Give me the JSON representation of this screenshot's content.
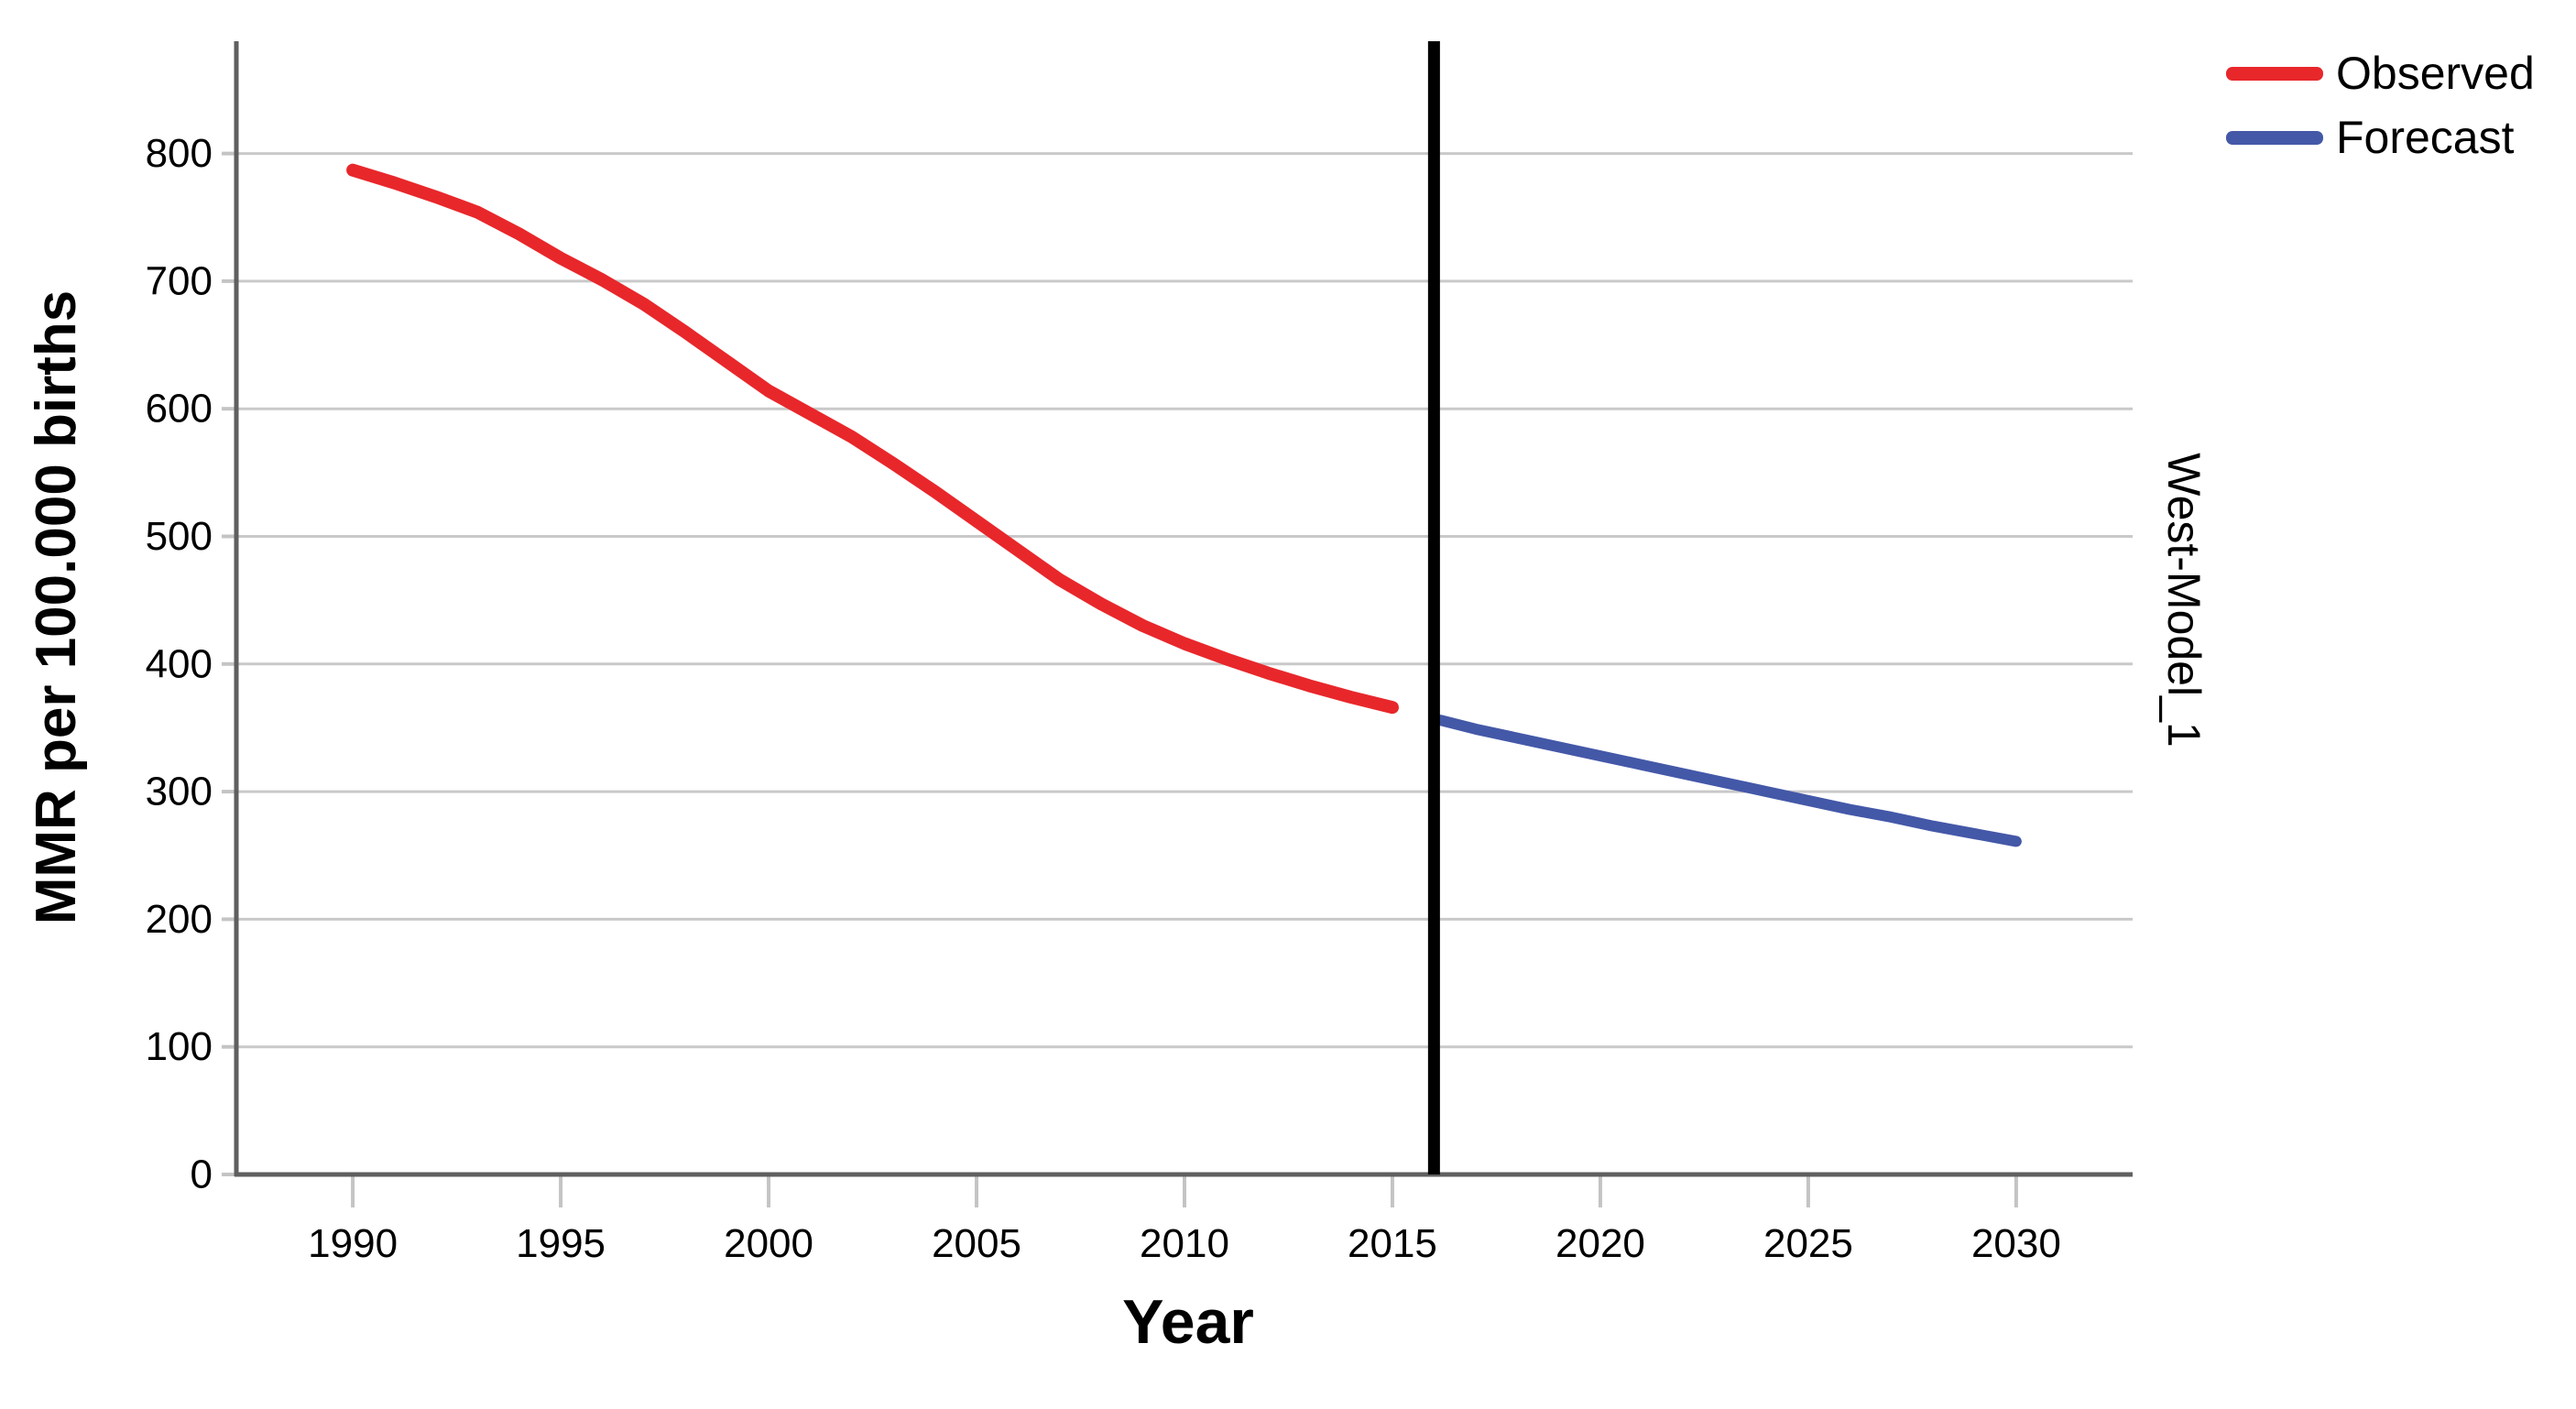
{
  "figure": {
    "y_axis_title": "MMR per 100.000 births",
    "x_axis_title": "Year",
    "right_label": "West-Model_1"
  },
  "legend": {
    "position": "top-right",
    "items": [
      {
        "label": "Observed",
        "color": "#E8272B"
      },
      {
        "label": "Forecast",
        "color": "#4458A8"
      }
    ]
  },
  "colors": {
    "background": "#FFFFFF",
    "gridline": "#C9C9C9",
    "axis_line": "#5F5F5F",
    "tick_mark": "#C4C4C4",
    "tick_label": "#000000",
    "separator_line": "#000000"
  },
  "chart_data": {
    "type": "line",
    "title": "",
    "xlabel": "Year",
    "ylabel": "MMR per 100.000 births",
    "xlim": [
      1987.2,
      2032.8
    ],
    "ylim": [
      0,
      888
    ],
    "x_ticks": [
      1990,
      1995,
      2000,
      2005,
      2010,
      2015,
      2020,
      2025,
      2030
    ],
    "y_ticks": [
      0,
      100,
      200,
      300,
      400,
      500,
      600,
      700,
      800
    ],
    "grid": "horizontal-only",
    "legend_position": "top-right",
    "right_side_label": "West-Model_1",
    "annotations": [
      {
        "type": "vline",
        "x": 2016,
        "color": "#000000",
        "note": "forecast start separator"
      }
    ],
    "series": [
      {
        "name": "Observed",
        "color": "#E8272B",
        "stroke_width": 14,
        "x": [
          1990,
          1991,
          1992,
          1993,
          1994,
          1995,
          1996,
          1997,
          1998,
          1999,
          2000,
          2001,
          2002,
          2003,
          2004,
          2005,
          2006,
          2007,
          2008,
          2009,
          2010,
          2011,
          2012,
          2013,
          2014,
          2015
        ],
        "y": [
          787,
          777,
          766,
          754,
          737,
          718,
          701,
          682,
          660,
          637,
          614,
          596,
          578,
          557,
          535,
          512,
          489,
          466,
          447,
          430,
          416,
          404,
          393,
          383,
          374,
          366
        ]
      },
      {
        "name": "Forecast",
        "color": "#4458A8",
        "stroke_width": 12,
        "x": [
          2016.15,
          2017,
          2018,
          2019,
          2020,
          2021,
          2022,
          2023,
          2024,
          2025,
          2026,
          2027,
          2028,
          2029,
          2030
        ],
        "y": [
          356,
          349,
          342,
          335,
          328,
          321,
          314,
          307,
          300,
          293,
          286,
          280,
          273,
          267,
          261
        ]
      }
    ]
  }
}
